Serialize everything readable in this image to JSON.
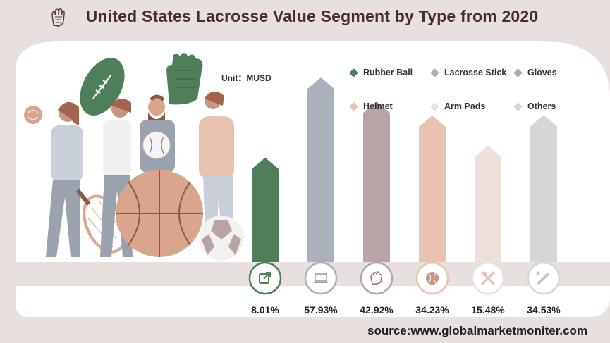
{
  "header": {
    "title": "United States Lacrosse Value Segment by Type from 2020",
    "icon": "baseball-glove-icon"
  },
  "unit_label": "Unit：MUSD",
  "source": "source:www.globalmarketmoniter.com",
  "colors": {
    "background": "#e8e0df",
    "panel": "#ffffff",
    "title": "#4a2c28"
  },
  "chart_data": {
    "type": "bar",
    "categories": [
      "Rubber Ball",
      "Lacrosse Stick",
      "Gloves",
      "Helmet",
      "Arm Pads",
      "Others"
    ],
    "values": [
      8.01,
      57.93,
      42.92,
      34.23,
      15.48,
      34.53
    ],
    "value_labels": [
      "8.01%",
      "57.93%",
      "42.92%",
      "34.23%",
      "15.48%",
      "34.53%"
    ],
    "colors": [
      "#4f7f5a",
      "#a9b2bc",
      "#b8a3a5",
      "#e8c3b2",
      "#ede0da",
      "#d6d6d8"
    ],
    "icons": [
      "share-icon",
      "laptop-icon",
      "glove-icon",
      "baseball-icon",
      "bat-icon",
      "stick-icon"
    ],
    "legend_position": "top-right",
    "grid": false
  }
}
